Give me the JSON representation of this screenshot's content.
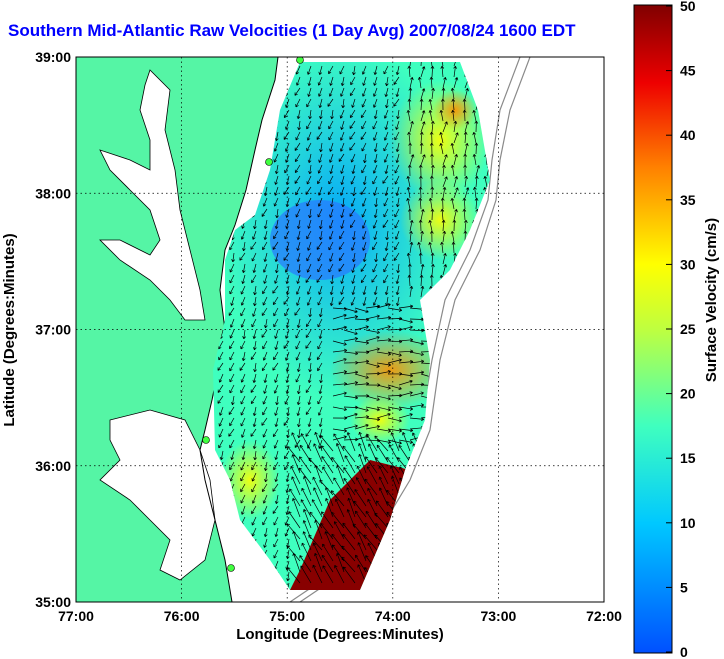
{
  "title": "Southern Mid-Atlantic Raw Velocities (1 Day Avg) 2007/08/24 1600 EDT",
  "map": {
    "xlabel": "Longitude (Degrees:Minutes)",
    "ylabel": "Latitude (Degrees:Minutes)",
    "lon_ticks": [
      "77:00",
      "76:00",
      "75:00",
      "74:00",
      "73:00",
      "72:00"
    ],
    "lat_ticks": [
      "39:00",
      "38:00",
      "37:00",
      "36:00",
      "35:00"
    ],
    "lon_range": [
      -77,
      -72
    ],
    "lat_range": [
      35,
      39
    ],
    "grid": true,
    "land_color": "#55f5a5",
    "water_color": "#ffffff"
  },
  "colorbar": {
    "label": "Surface Velocity (cm/s)",
    "ticks": [
      "0",
      "5",
      "10",
      "15",
      "20",
      "25",
      "30",
      "35",
      "40",
      "45",
      "50"
    ],
    "range": [
      0,
      50
    ],
    "colormap": "jet"
  }
}
